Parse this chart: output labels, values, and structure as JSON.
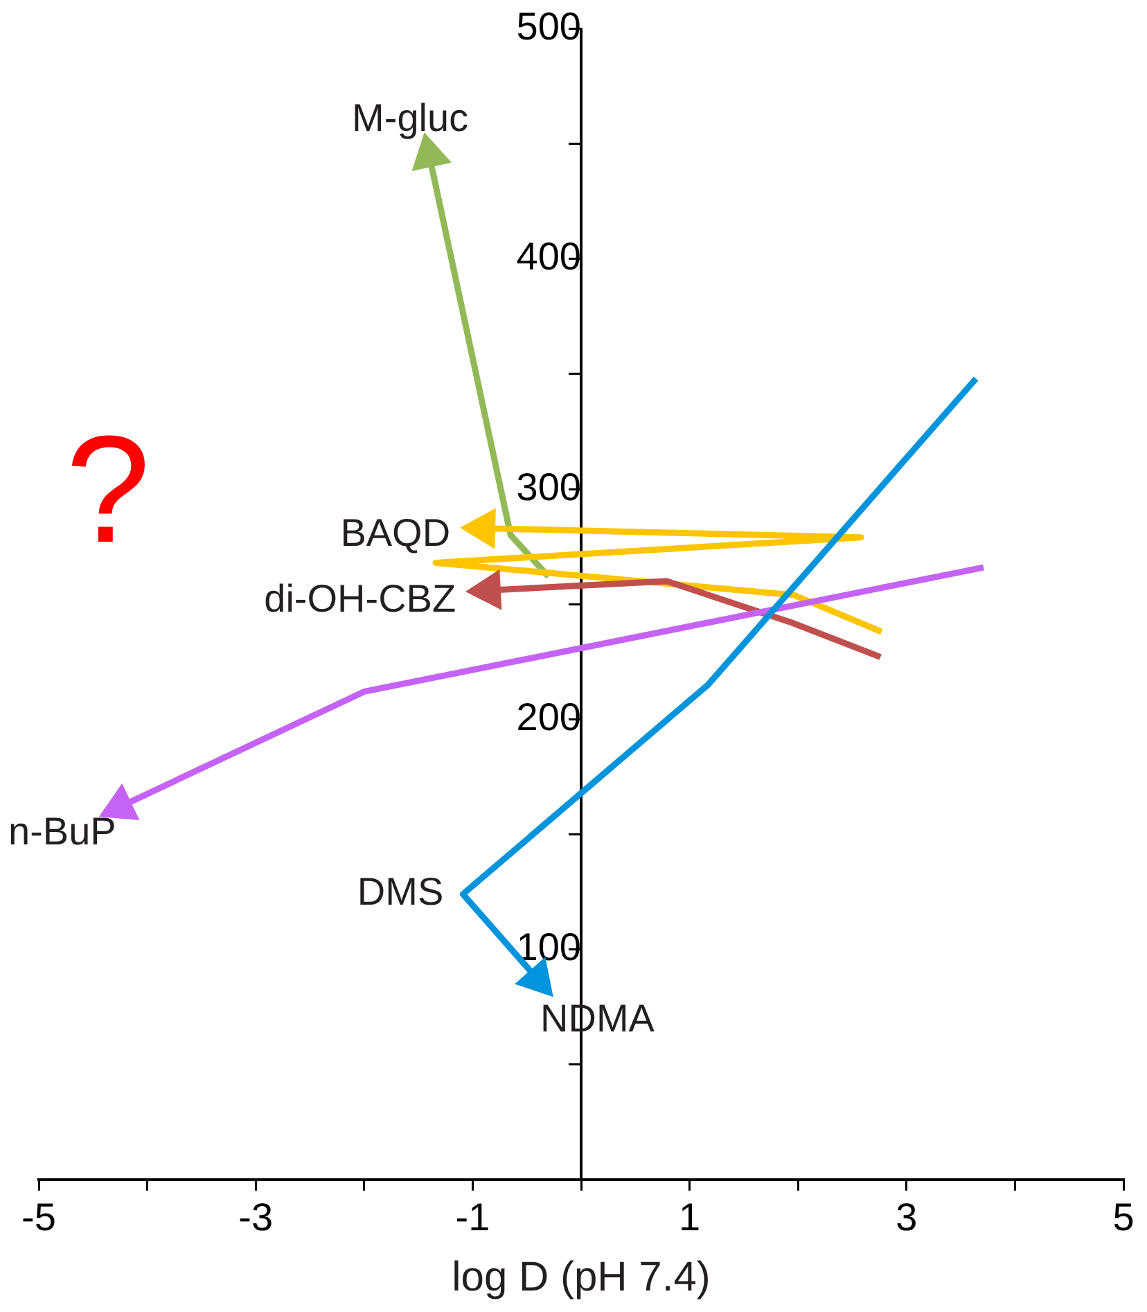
{
  "chart_data": {
    "type": "line",
    "xlabel": "log D (pH 7.4)",
    "xlim": [
      -5,
      5
    ],
    "xticks": [
      -5,
      {
        "value": -4,
        "label": null
      },
      -3,
      {
        "value": -2,
        "label": null
      },
      -1,
      {
        "value": 0,
        "label": null
      },
      1,
      {
        "value": 2,
        "label": null
      },
      3,
      {
        "value": 4,
        "label": null
      },
      5
    ],
    "ylim": [
      0,
      500
    ],
    "yticks": [
      {
        "value": 50,
        "label": null
      },
      100,
      {
        "value": 150,
        "label": null
      },
      200,
      {
        "value": 250,
        "label": null
      },
      300,
      {
        "value": 350,
        "label": null
      },
      400,
      {
        "value": 450,
        "label": null
      },
      500
    ],
    "grid": false,
    "legend": false,
    "line_style": "solid",
    "series": [
      {
        "name": "NDMA",
        "color": "#0094dc",
        "x": [
          3.64,
          1.17,
          -1.09,
          -0.4
        ],
        "values": [
          348,
          215,
          124,
          87
        ]
      },
      {
        "name": "n-BuP",
        "color": "#c463f5",
        "x": [
          3.71,
          -2.0,
          -4.25
        ],
        "values": [
          266,
          212,
          162
        ]
      },
      {
        "name": "di-OH-CBZ",
        "color": "#c0504d",
        "x": [
          2.76,
          1.94,
          0.79,
          -0.85
        ],
        "values": [
          227,
          242,
          260,
          256
        ]
      },
      {
        "name": "BAQD",
        "color": "#fcc500",
        "x": [
          2.77,
          1.96,
          -1.34,
          2.58,
          -0.9
        ],
        "values": [
          238,
          254,
          268,
          279,
          283
        ]
      },
      {
        "name": "M-gluc",
        "color": "#92b956",
        "x": [
          -0.3,
          -0.65,
          -1.4
        ],
        "values": [
          262,
          280,
          445
        ]
      }
    ],
    "annotations": [
      {
        "text": "DMS",
        "x": -1.09,
        "y": 124
      },
      "?"
    ]
  }
}
